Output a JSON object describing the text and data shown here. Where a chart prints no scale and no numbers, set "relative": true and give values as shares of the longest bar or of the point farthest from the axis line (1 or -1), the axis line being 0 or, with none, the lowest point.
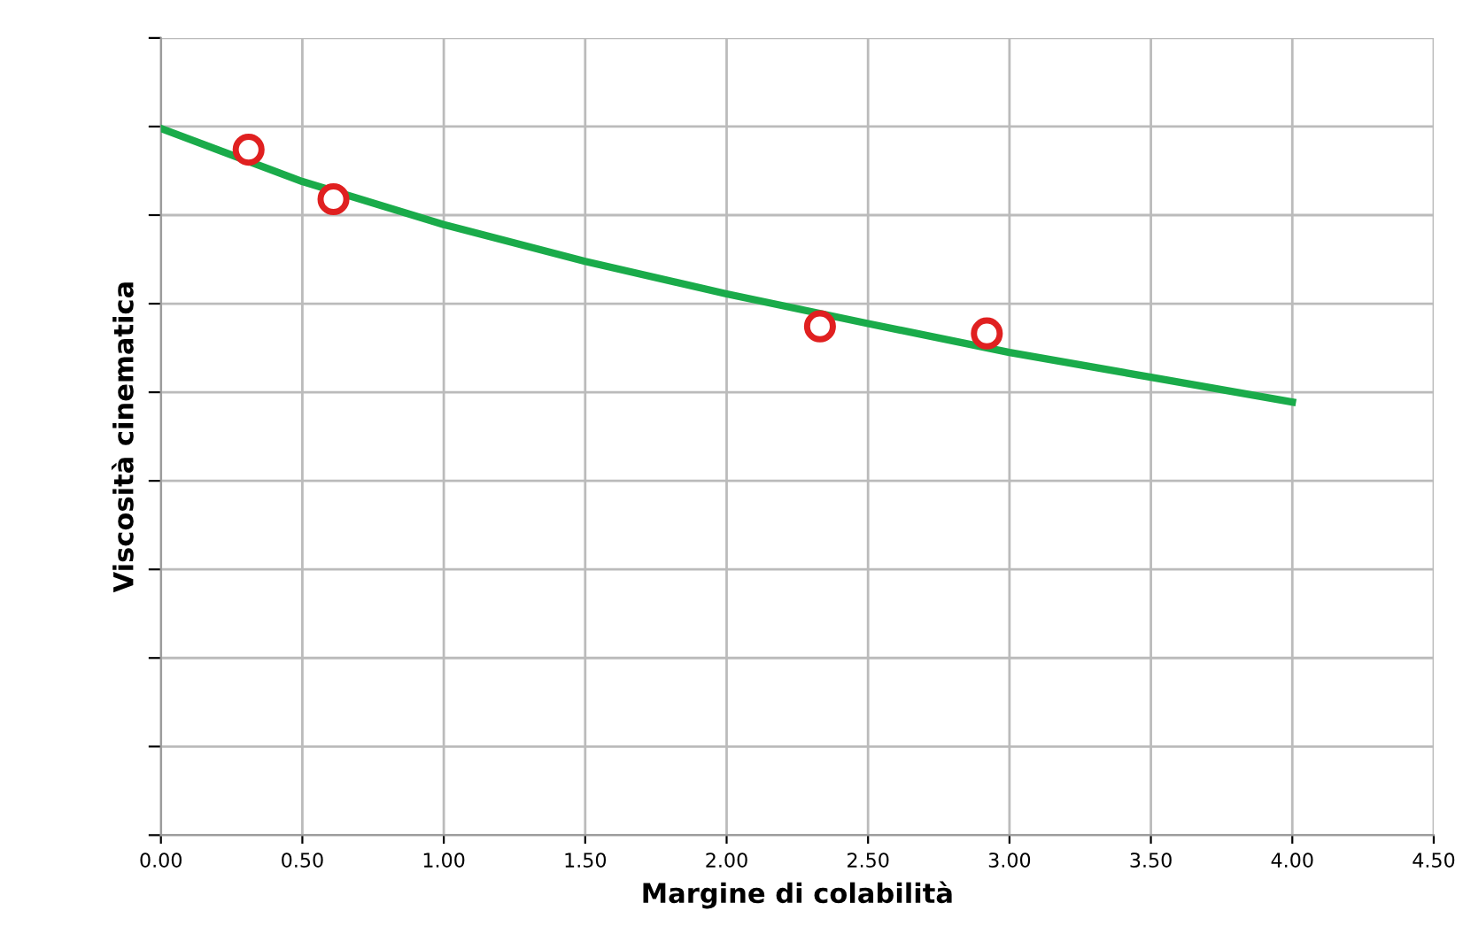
{
  "chart_data": {
    "type": "line",
    "xlabel": "Margine di colabilità",
    "ylabel": "Viscosità cinematica",
    "relative": true,
    "xlim": [
      0,
      4.5
    ],
    "xticks": [
      {
        "value": 0,
        "label": "0.00"
      },
      {
        "value": 0.5,
        "label": "0.50"
      },
      {
        "value": 1,
        "label": "1.00"
      },
      {
        "value": 1.5,
        "label": "1.50"
      },
      {
        "value": 2,
        "label": "2.00"
      },
      {
        "value": 2.5,
        "label": "2.50"
      },
      {
        "value": 3,
        "label": "3.00"
      },
      {
        "value": 3.5,
        "label": "3.50"
      },
      {
        "value": 4,
        "label": "4.00"
      },
      {
        "value": 4.5,
        "label": "4.50"
      }
    ],
    "grid": true,
    "tick_labels": "x",
    "series": [
      {
        "color": "#1aab4a",
        "marker": "none",
        "x": [
          0,
          0.5,
          1,
          1.5,
          2,
          2.5,
          3,
          3.5,
          4
        ],
        "values": [
          1.0,
          0.925,
          0.864,
          0.812,
          0.766,
          0.724,
          0.683,
          0.648,
          0.613
        ]
      },
      {
        "type": "scatter",
        "color": "#e02020",
        "marker": "circle",
        "x": [
          0.31,
          0.61,
          2.33,
          2.92
        ],
        "values": [
          0.97,
          0.9,
          0.72,
          0.71
        ]
      }
    ]
  }
}
